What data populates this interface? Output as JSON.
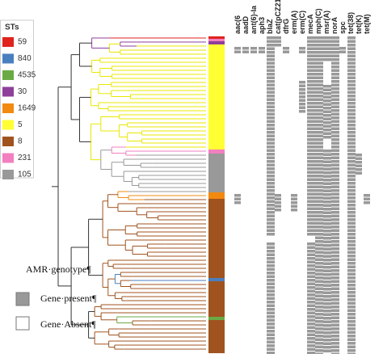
{
  "legend": {
    "title": "STs",
    "items": [
      {
        "label": "59",
        "color": "#e0231c"
      },
      {
        "label": "840",
        "color": "#4a7fbf"
      },
      {
        "label": "4535",
        "color": "#6aaa45"
      },
      {
        "label": "30",
        "color": "#8e3f9b"
      },
      {
        "label": "1649",
        "color": "#f28a10"
      },
      {
        "label": "5",
        "color": "#ffff33"
      },
      {
        "label": "8",
        "color": "#a1531f"
      },
      {
        "label": "231",
        "color": "#f27fbf"
      },
      {
        "label": "105",
        "color": "#999999"
      }
    ]
  },
  "genes": [
    "aac(6",
    "aadD",
    "ant(6)-Ia",
    "aph3",
    "blaZ",
    "cat(pCZ21)",
    "dfrG",
    "erm(A)",
    "erm(C)",
    "mecA",
    "mph(C)",
    "msr(A)",
    "norA",
    "spc",
    "tet(38)",
    "tet(K)",
    "tet(M)"
  ],
  "amr_legend": {
    "title": "AMR·genotype¶",
    "present": "Gene·present¶",
    "absent": "Gene·Absent¶"
  }
}
